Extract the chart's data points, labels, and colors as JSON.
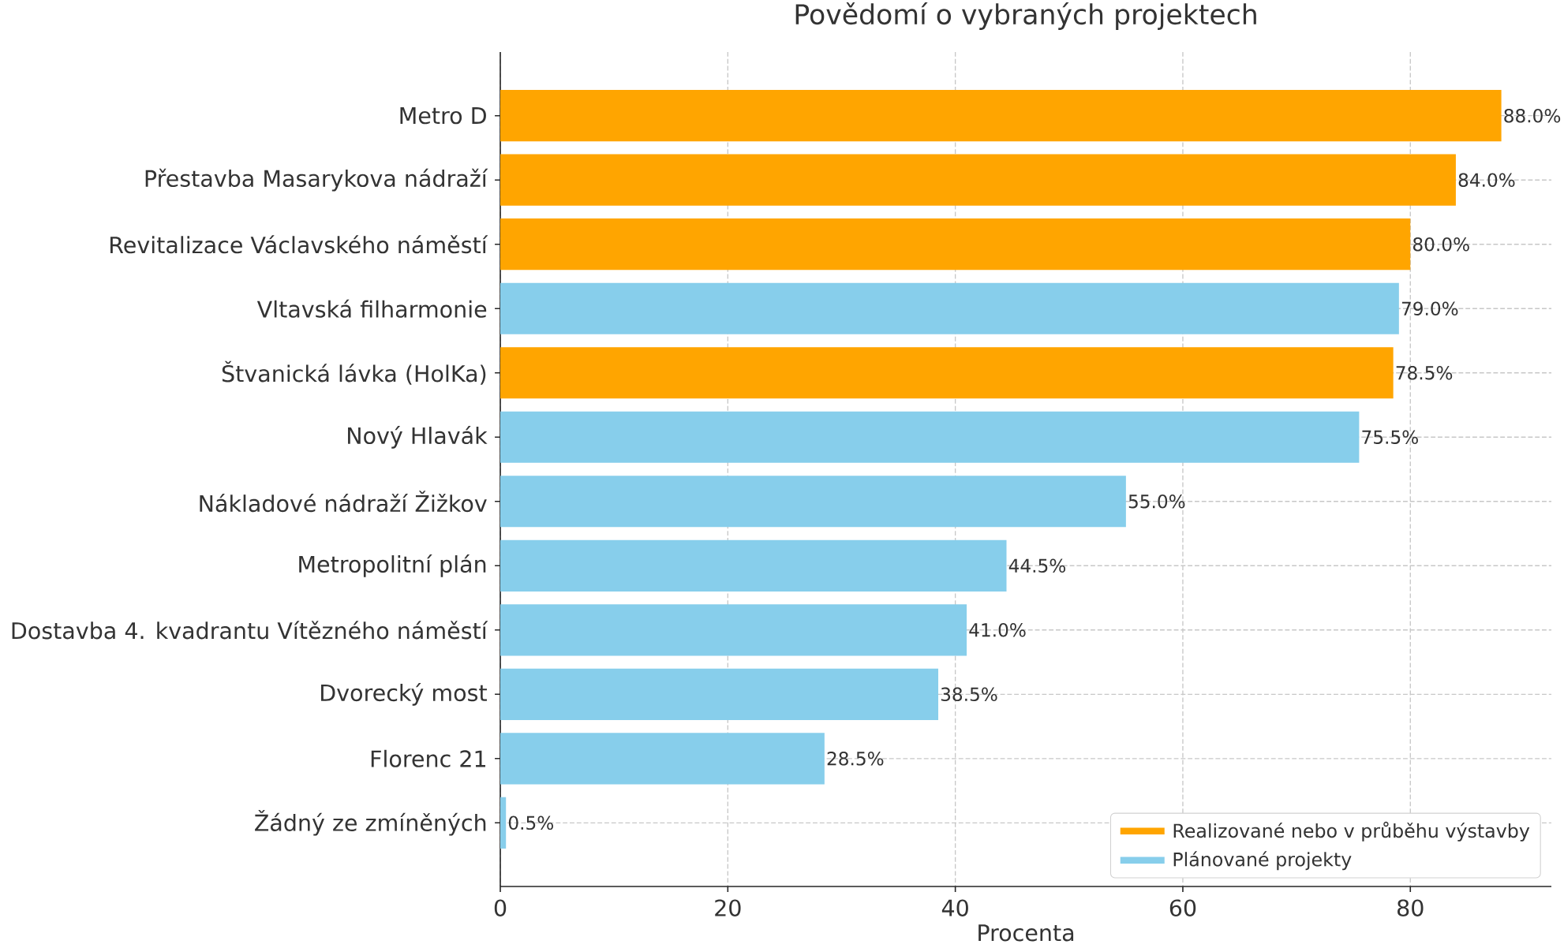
{
  "chart_data": {
    "type": "bar",
    "orientation": "horizontal",
    "title": "Povědomí o vybraných projektech",
    "xlabel": "Procenta",
    "categories": [
      "Metro D",
      "Přestavba Masarykova nádraží",
      "Revitalizace Václavského náměstí",
      "Vltavská filharmonie",
      "Štvanická lávka (HolKa)",
      "Nový Hlavák",
      "Nákladové nádraží Žižkov",
      "Metropolitní plán",
      "Dostavba 4. kvadrantu Vítězného náměstí",
      "Dvorecký most",
      "Florenc 21",
      "Žádný ze zmíněných"
    ],
    "series": [
      {
        "name": "Realizované nebo v průběhu výstavby",
        "color": "#ffa500",
        "values": [
          88.0,
          84.0,
          80.0,
          null,
          78.5,
          null,
          null,
          null,
          null,
          null,
          null,
          null
        ],
        "value_labels": [
          "88.0%",
          "84.0%",
          "80.0%",
          null,
          "78.5%",
          null,
          null,
          null,
          null,
          null,
          null,
          null
        ]
      },
      {
        "name": "Plánované projekty",
        "color": "#87ceeb",
        "values": [
          null,
          null,
          null,
          79.0,
          null,
          75.5,
          55.0,
          44.5,
          41.0,
          38.5,
          28.5,
          0.5
        ],
        "value_labels": [
          null,
          null,
          null,
          "79.0%",
          null,
          "75.5%",
          "55.0%",
          "44.5%",
          "41.0%",
          "38.5%",
          "28.5%",
          "0.5%"
        ]
      }
    ],
    "xlim": [
      0,
      92.4
    ],
    "xticks": [
      0,
      20,
      40,
      60,
      80
    ],
    "grid": true,
    "legend": "bottom right"
  }
}
